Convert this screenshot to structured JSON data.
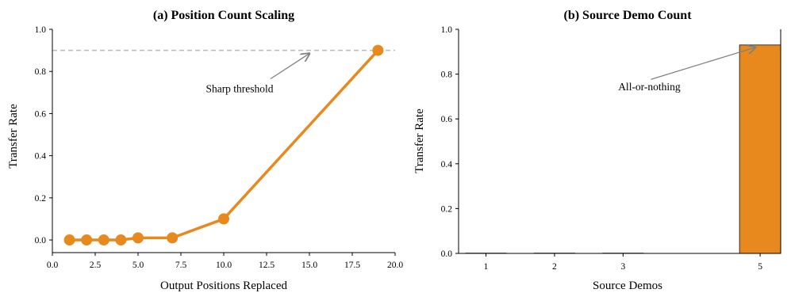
{
  "colors": {
    "accent": "#E8891E",
    "bar_edge": "#333333",
    "threshold_line": "#bbbbbb",
    "arrow": "#808080"
  },
  "chart_data": [
    {
      "type": "line",
      "title": "(a) Position Count Scaling",
      "xlabel": "Output Positions Replaced",
      "ylabel": "Transfer Rate",
      "xlim": [
        0,
        20
      ],
      "ylim": [
        0,
        1.0
      ],
      "xticks": [
        0,
        2.5,
        5,
        7.5,
        10,
        12.5,
        15,
        17.5,
        20
      ],
      "xtick_labels": [
        "0.0",
        "2.5",
        "5.0",
        "7.5",
        "10.0",
        "12.5",
        "15.0",
        "17.5",
        "20.0"
      ],
      "yticks": [
        0,
        0.2,
        0.4,
        0.6,
        0.8,
        1.0
      ],
      "ytick_labels": [
        "0.0",
        "0.2",
        "0.4",
        "0.6",
        "0.8",
        "1.0"
      ],
      "x": [
        1,
        2,
        3,
        4,
        5,
        7,
        10,
        19
      ],
      "y": [
        0.0,
        0.0,
        0.0,
        0.0,
        0.01,
        0.01,
        0.1,
        0.9
      ],
      "reference_line": {
        "y": 0.9,
        "style": "dashed"
      },
      "annotation": {
        "text": "Sharp threshold",
        "text_at": [
          12.5,
          0.72
        ],
        "arrow_to": [
          15,
          0.9
        ]
      },
      "grid": false
    },
    {
      "type": "bar",
      "title": "(b) Source Demo Count",
      "xlabel": "Source Demos",
      "ylabel": "Transfer Rate",
      "ylim": [
        0,
        1.0
      ],
      "categories": [
        "1",
        "2",
        "3",
        "5"
      ],
      "category_positions": [
        1,
        2,
        3,
        5
      ],
      "values": [
        0.0,
        0.0,
        0.0,
        0.93
      ],
      "yticks": [
        0,
        0.2,
        0.4,
        0.6,
        0.8,
        1.0
      ],
      "ytick_labels": [
        "0.0",
        "0.2",
        "0.4",
        "0.6",
        "0.8",
        "1.0"
      ],
      "annotation": {
        "text": "All-or-nothing",
        "text_at": [
          3.8,
          0.72
        ],
        "arrow_to": [
          5,
          0.93
        ]
      },
      "grid": false
    }
  ]
}
